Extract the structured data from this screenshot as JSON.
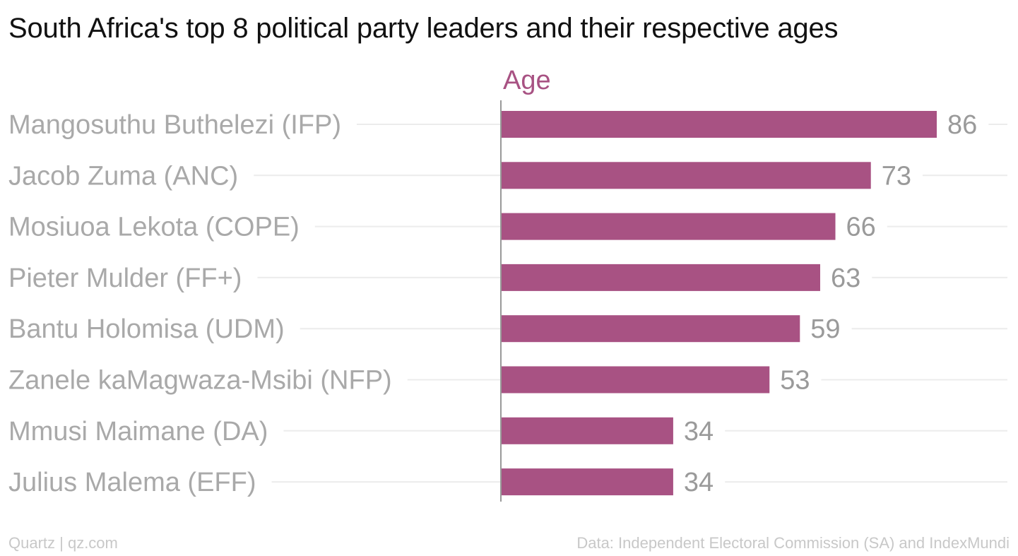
{
  "title": "South Africa's top 8 political party leaders and their respective ages",
  "footer": {
    "credit": "Quartz | qz.com",
    "source": "Data: Independent Electoral Commission (SA) and IndexMundi"
  },
  "colors": {
    "bar": "#a85283",
    "series_label": "#a85283",
    "category_text": "#a9a9a9",
    "value_text": "#9a9a9a",
    "axis": "#999999",
    "gridline": "#ececec"
  },
  "chart_data": {
    "type": "bar",
    "orientation": "horizontal",
    "title": "South Africa's top 8 political party leaders and their respective ages",
    "categories": [
      "Mangosuthu Buthelezi (IFP)",
      "Jacob Zuma (ANC)",
      "Mosiuoa Lekota (COPE)",
      "Pieter Mulder (FF+)",
      "Bantu Holomisa (UDM)",
      "Zanele kaMagwaza-Msibi (NFP)",
      "Mmusi Maimane (DA)",
      "Julius Malema (EFF)"
    ],
    "series": [
      {
        "name": "Age",
        "values": [
          86,
          73,
          66,
          63,
          59,
          53,
          34,
          34
        ]
      }
    ],
    "xlim": [
      0,
      86
    ],
    "grid": true,
    "legend": "top"
  }
}
